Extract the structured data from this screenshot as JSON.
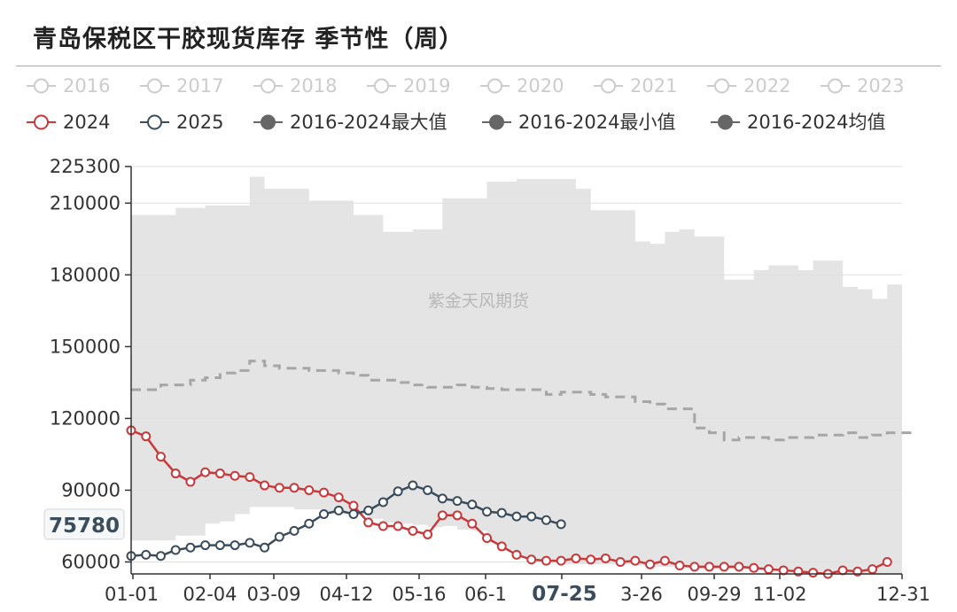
{
  "title": "青岛保税区干胶现货库存 季节性（周）",
  "watermark": "紫金天风期货",
  "colors": {
    "s2024": "#c8393b",
    "s2025": "#3b4d5c",
    "band": "#e4e4e4",
    "avg": "#a6a6a6",
    "legend_off": "#cccccc",
    "legend_grey": "#666666"
  },
  "legend": {
    "row1": [
      "2016",
      "2017",
      "2018",
      "2019",
      "2020",
      "2021",
      "2022",
      "2023"
    ],
    "row2": [
      "2024",
      "2025",
      "2016-2024最大值",
      "2016-2024最小值",
      "2016-2024均值"
    ]
  },
  "chart_data": {
    "type": "line",
    "title": "青岛保税区干胶现货库存 季节性（周）",
    "ylim": [
      55000,
      225300
    ],
    "yticks": [
      "225300",
      "210000",
      "180000",
      "150000",
      "120000",
      "90000",
      "60000"
    ],
    "xticks": [
      "01-01",
      "02-04",
      "03-09",
      "04-12",
      "05-16",
      "06-1",
      "07-25",
      "3-26",
      "09-29",
      "11-02",
      "12-31"
    ],
    "highlight": {
      "x_label": "07-25",
      "y_label": "75780"
    },
    "grid": true,
    "series": [
      {
        "name": "2024",
        "values": [
          115000,
          112500,
          104000,
          97000,
          93500,
          97500,
          97000,
          96000,
          95500,
          92000,
          91000,
          91000,
          90000,
          89000,
          87000,
          83500,
          76500,
          75000,
          75000,
          73000,
          71500,
          79500,
          79500,
          76000,
          70000,
          66500,
          63000,
          61000,
          60500,
          60500,
          61500,
          61000,
          61500,
          60000,
          60500,
          59000,
          60500,
          58500,
          58000,
          58000,
          58000,
          58000,
          57500,
          57000,
          56500,
          56000,
          55500,
          55000,
          56500,
          56000,
          57000,
          60000
        ]
      },
      {
        "name": "2025",
        "values": [
          62500,
          63000,
          62500,
          65000,
          66000,
          67000,
          67000,
          67000,
          68000,
          66000,
          70500,
          73000,
          76000,
          80000,
          81500,
          80000,
          81500,
          85000,
          89500,
          92000,
          90000,
          86500,
          85500,
          84000,
          81000,
          80500,
          79000,
          79000,
          77500,
          75780
        ]
      },
      {
        "name": "2016-2024最大值",
        "values": [
          205000,
          205000,
          205000,
          208000,
          208000,
          209000,
          209000,
          209000,
          221000,
          216000,
          216000,
          216000,
          211000,
          211000,
          211000,
          205000,
          205000,
          198000,
          198000,
          199000,
          199000,
          212000,
          212000,
          212000,
          219000,
          219000,
          220000,
          220000,
          220000,
          220000,
          216000,
          207000,
          207000,
          207000,
          194000,
          193000,
          198000,
          199000,
          196000,
          196000,
          178000,
          178000,
          182000,
          184000,
          184000,
          182000,
          186000,
          186000,
          175000,
          174000,
          170000,
          176000,
          176000
        ]
      },
      {
        "name": "2016-2024最小值",
        "values": [
          69000,
          69000,
          69000,
          71000,
          71000,
          76000,
          77000,
          80000,
          83000,
          83000,
          83000,
          82000,
          82000,
          80000,
          80000,
          80000,
          78000,
          76500,
          76000,
          75500,
          74500,
          75000,
          73500,
          73000,
          68000,
          65000,
          62000,
          60000,
          59500,
          59000,
          59000,
          59000,
          59000,
          59000,
          58500,
          58000,
          58000,
          57500,
          57000,
          57000,
          57000,
          57000,
          57000,
          56500,
          56000,
          55500,
          55000,
          54500,
          54500,
          54500,
          54500,
          54500,
          54500
        ]
      },
      {
        "name": "2016-2024均值",
        "values": [
          132000,
          132000,
          134000,
          134000,
          136000,
          137000,
          139000,
          140000,
          144000,
          142000,
          141000,
          141000,
          140000,
          140000,
          139000,
          138000,
          136000,
          136000,
          135000,
          134000,
          133000,
          133000,
          134000,
          133000,
          132500,
          132000,
          132000,
          132000,
          130000,
          131000,
          131000,
          130000,
          129000,
          129000,
          127000,
          126000,
          124000,
          124000,
          116000,
          114000,
          111000,
          112000,
          112000,
          111000,
          112000,
          112000,
          113000,
          113000,
          114000,
          112000,
          113000,
          114000,
          114000
        ]
      }
    ]
  }
}
